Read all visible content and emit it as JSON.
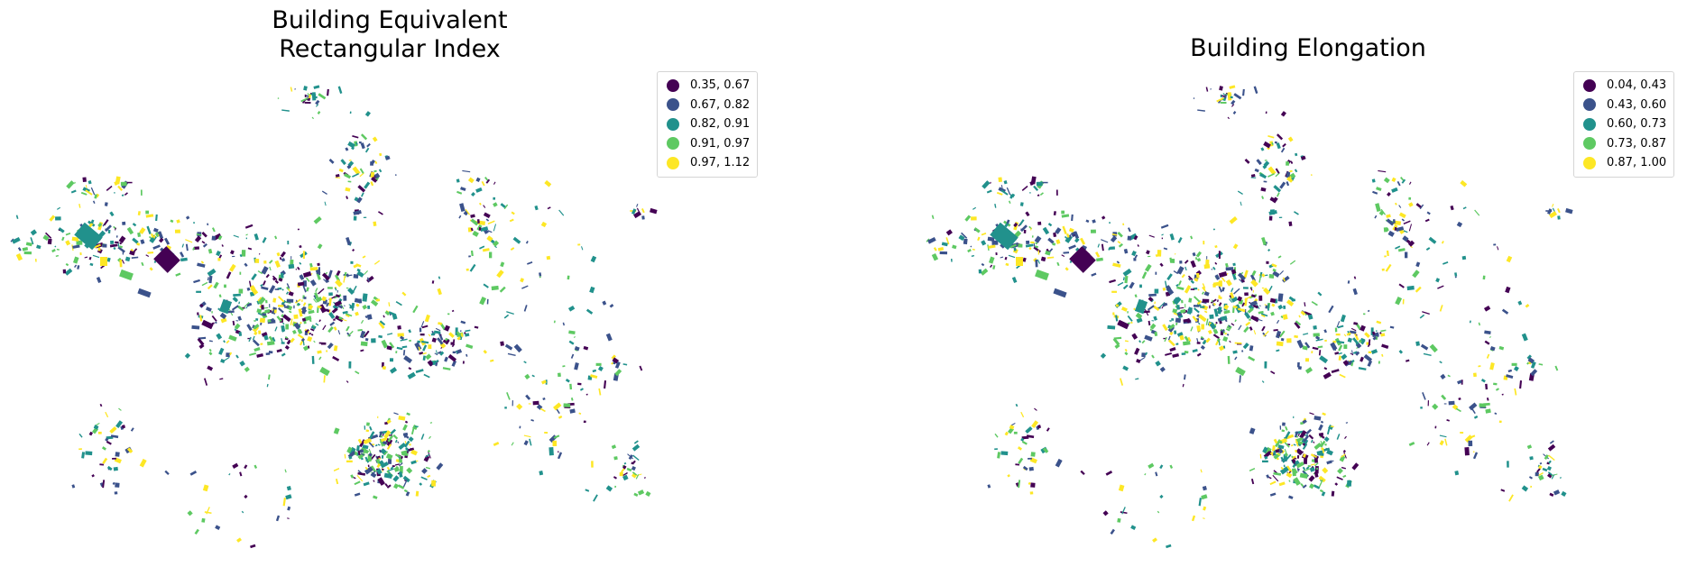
{
  "palette": [
    "#440154",
    "#3b528b",
    "#21918c",
    "#5ec962",
    "#fde725"
  ],
  "maps": [
    {
      "title_line1": "Building Equivalent",
      "title_line2": "Rectangular Index",
      "legend": [
        {
          "label": "0.35, 0.67",
          "color": "#440154"
        },
        {
          "label": "0.67, 0.82",
          "color": "#3b528b"
        },
        {
          "label": "0.82, 0.91",
          "color": "#21918c"
        },
        {
          "label": "0.91, 0.97",
          "color": "#5ec962"
        },
        {
          "label": "0.97, 1.12",
          "color": "#fde725"
        }
      ]
    },
    {
      "title_line1": "Building Elongation",
      "legend": [
        {
          "label": "0.04, 0.43",
          "color": "#440154"
        },
        {
          "label": "0.43, 0.60",
          "color": "#3b528b"
        },
        {
          "label": "0.60, 0.73",
          "color": "#21918c"
        },
        {
          "label": "0.73, 0.87",
          "color": "#5ec962"
        },
        {
          "label": "0.87, 1.00",
          "color": "#fde725"
        }
      ]
    }
  ]
}
